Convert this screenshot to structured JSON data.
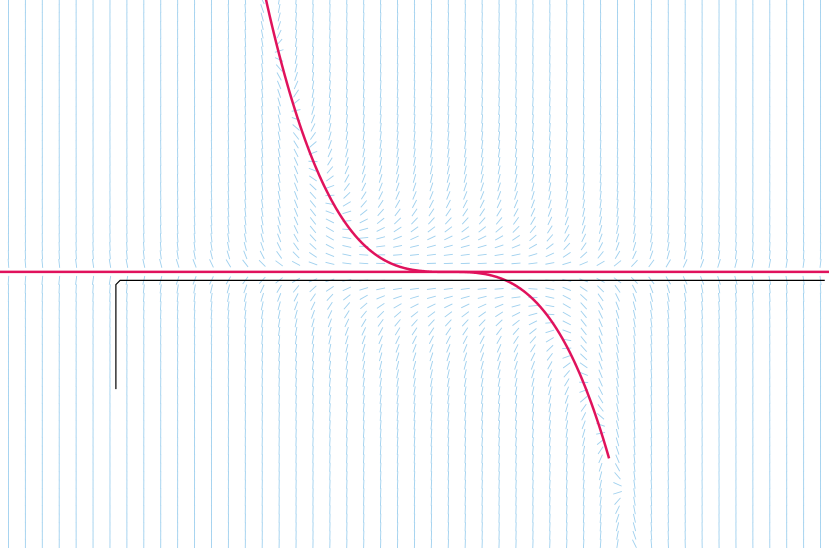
{
  "figure": {
    "type": "slope-field",
    "background": "#ffffff",
    "colors": {
      "field": "#9fd0ee",
      "curves": "#e0125c",
      "solution_path": "#000000"
    },
    "field_grid": {
      "x_range": [
        -4.7,
        4.9
      ],
      "y_range": [
        -3.2,
        3.2
      ],
      "step_x": 0.2,
      "step_y": 0.1
    },
    "view": {
      "x_range": [
        -4.8,
        5.0
      ],
      "y_range": [
        -3.25,
        3.2
      ]
    },
    "equation_model": {
      "null_line_y": 0.0,
      "cubic_center_x": 0.5,
      "cubic_coeff": -0.32
    },
    "curves": [
      {
        "id": "horizontal-null-line",
        "kind": "line",
        "y": 0.0
      },
      {
        "id": "cubic-curve",
        "kind": "cubic",
        "x_range": [
          -1.8,
          2.4
        ]
      }
    ],
    "solution_path": [
      [
        -3.43,
        -1.38
      ],
      [
        -3.43,
        -0.15
      ],
      [
        -3.38,
        -0.1
      ],
      [
        4.95,
        -0.1
      ]
    ]
  }
}
